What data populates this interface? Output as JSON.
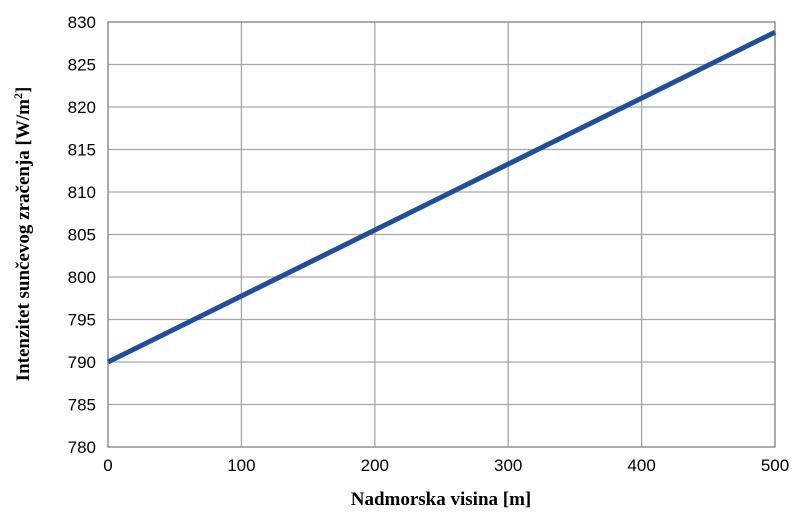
{
  "chart_data": {
    "type": "line",
    "xlabel": "Nadmorska visina [m]",
    "ylabel_main": "Intenzitet sunčevog zračenja [W/m",
    "ylabel_sup": "2",
    "ylabel_close": "]",
    "xlim": [
      0,
      500
    ],
    "ylim": [
      780,
      830
    ],
    "x_ticks": [
      "0",
      "100",
      "200",
      "300",
      "400",
      "500"
    ],
    "y_ticks": [
      "780",
      "785",
      "790",
      "795",
      "800",
      "805",
      "810",
      "815",
      "820",
      "825",
      "830"
    ],
    "grid": true,
    "series": [
      {
        "x": [
          0,
          500
        ],
        "y": [
          790,
          828.8
        ],
        "color": "#1f4e9c"
      }
    ]
  }
}
